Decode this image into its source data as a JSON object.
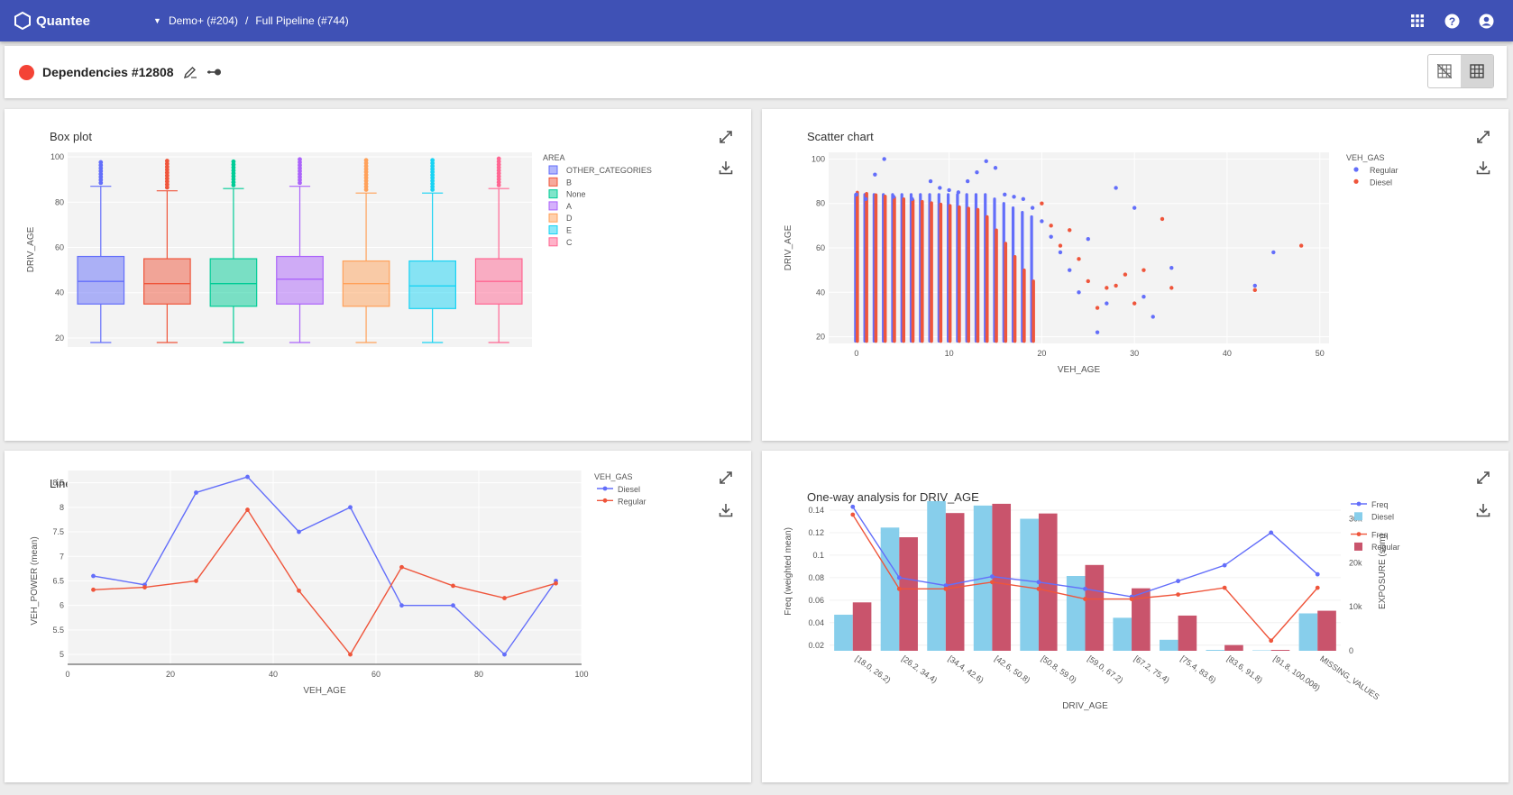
{
  "app": {
    "name": "Quantee",
    "breadcrumb": [
      "Demo+ (#204)",
      "Full Pipeline (#744)"
    ]
  },
  "page": {
    "title": "Dependencies #12808",
    "status_color": "#f44336"
  },
  "topbar_icons": [
    "apps-grid-icon",
    "help-icon",
    "account-icon"
  ],
  "view_toggle": [
    "grid-off-icon",
    "grid-icon"
  ],
  "colors": {
    "primary": "#3f51b5",
    "plot_bg": "#f3f3f3"
  },
  "panels": {
    "box": {
      "title": "Box plot"
    },
    "scatter": {
      "title": "Scatter chart"
    },
    "line": {
      "title": "Line chart"
    },
    "oneway": {
      "title": "One-way analysis for DRIV_AGE"
    }
  },
  "chart_data": [
    {
      "type": "box",
      "title": "Box plot",
      "xlabel": "",
      "ylabel": "DRIV_AGE",
      "ylim": [
        16,
        102
      ],
      "yticks": [
        20,
        40,
        60,
        80,
        100
      ],
      "legend_title": "AREA",
      "legend_position": "right",
      "series": [
        {
          "name": "OTHER_CATEGORIES",
          "color": "#636efa",
          "min": 18,
          "q1": 35,
          "median": 45,
          "q3": 56,
          "max": 87,
          "outliers_to": 98
        },
        {
          "name": "B",
          "color": "#ef553b",
          "min": 18,
          "q1": 35,
          "median": 44,
          "q3": 55,
          "max": 85,
          "outliers_to": 99
        },
        {
          "name": "None",
          "color": "#00cc96",
          "min": 18,
          "q1": 34,
          "median": 44,
          "q3": 55,
          "max": 86,
          "outliers_to": 99
        },
        {
          "name": "A",
          "color": "#ab63fa",
          "min": 18,
          "q1": 35,
          "median": 46,
          "q3": 56,
          "max": 87,
          "outliers_to": 99
        },
        {
          "name": "D",
          "color": "#ffa15a",
          "min": 18,
          "q1": 34,
          "median": 44,
          "q3": 54,
          "max": 84,
          "outliers_to": 99
        },
        {
          "name": "E",
          "color": "#19d3f3",
          "min": 18,
          "q1": 33,
          "median": 43,
          "q3": 54,
          "max": 84,
          "outliers_to": 99
        },
        {
          "name": "C",
          "color": "#ff6692",
          "min": 18,
          "q1": 35,
          "median": 45,
          "q3": 55,
          "max": 86,
          "outliers_to": 100
        }
      ]
    },
    {
      "type": "scatter",
      "title": "Scatter chart",
      "xlabel": "VEH_AGE",
      "ylabel": "DRIV_AGE",
      "xlim": [
        -3,
        51
      ],
      "ylim": [
        17,
        103
      ],
      "xticks": [
        0,
        10,
        20,
        30,
        40,
        50
      ],
      "yticks": [
        20,
        40,
        60,
        80,
        100
      ],
      "legend_title": "VEH_GAS",
      "legend_position": "right",
      "series": [
        {
          "name": "Regular",
          "color": "#636efa",
          "points": [
            [
              0,
              84
            ],
            [
              1,
              82
            ],
            [
              2,
              93
            ],
            [
              3,
              100
            ],
            [
              4,
              83
            ],
            [
              6,
              82
            ],
            [
              8,
              90
            ],
            [
              9,
              87
            ],
            [
              10,
              86
            ],
            [
              11,
              85
            ],
            [
              12,
              90
            ],
            [
              13,
              94
            ],
            [
              14,
              99
            ],
            [
              15,
              96
            ],
            [
              16,
              84
            ],
            [
              17,
              83
            ],
            [
              18,
              82
            ],
            [
              19,
              78
            ],
            [
              20,
              72
            ],
            [
              21,
              65
            ],
            [
              22,
              58
            ],
            [
              23,
              50
            ],
            [
              24,
              40
            ],
            [
              25,
              64
            ],
            [
              26,
              22
            ],
            [
              27,
              35
            ],
            [
              28,
              87
            ],
            [
              30,
              78
            ],
            [
              31,
              38
            ],
            [
              32,
              29
            ],
            [
              34,
              51
            ],
            [
              43,
              43
            ],
            [
              45,
              58
            ]
          ]
        },
        {
          "name": "Diesel",
          "color": "#ef553b",
          "points": [
            [
              20,
              80
            ],
            [
              21,
              70
            ],
            [
              22,
              61
            ],
            [
              23,
              68
            ],
            [
              24,
              55
            ],
            [
              25,
              45
            ],
            [
              26,
              33
            ],
            [
              27,
              42
            ],
            [
              28,
              43
            ],
            [
              29,
              48
            ],
            [
              30,
              35
            ],
            [
              31,
              50
            ],
            [
              33,
              73
            ],
            [
              34,
              42
            ],
            [
              43,
              41
            ],
            [
              48,
              61
            ]
          ]
        }
      ]
    },
    {
      "type": "line",
      "title": "Line chart",
      "xlabel": "VEH_AGE",
      "ylabel": "VEH_POWER (mean)",
      "xlim": [
        0,
        100
      ],
      "ylim": [
        4.8,
        8.75
      ],
      "xticks": [
        0,
        20,
        40,
        60,
        80,
        100
      ],
      "yticks": [
        5,
        5.5,
        6,
        6.5,
        7,
        7.5,
        8,
        8.5
      ],
      "legend_title": "VEH_GAS",
      "legend_position": "right",
      "x": [
        5,
        15,
        25,
        35,
        45,
        55,
        65,
        75,
        85,
        95
      ],
      "series": [
        {
          "name": "Diesel",
          "color": "#636efa",
          "values": [
            6.6,
            6.42,
            8.3,
            8.62,
            7.5,
            8.0,
            6.0,
            6.0,
            5.0,
            6.5
          ]
        },
        {
          "name": "Regular",
          "color": "#ef553b",
          "values": [
            6.32,
            6.37,
            6.5,
            7.95,
            6.3,
            5.0,
            6.78,
            6.4,
            6.15,
            6.45
          ]
        }
      ]
    },
    {
      "type": "bar",
      "title": "One-way analysis for DRIV_AGE",
      "xlabel": "DRIV_AGE",
      "ylabel": "Freq (weighted mean)",
      "y2label": "EXPOSURE (sum)",
      "ylim": [
        0.015,
        0.148
      ],
      "yticks": [
        0.02,
        0.04,
        0.06,
        0.08,
        0.1,
        0.12,
        0.14
      ],
      "y2lim": [
        0,
        34000
      ],
      "y2ticks": [
        0,
        10000,
        20000,
        30000
      ],
      "y2ticklabels": [
        "0",
        "10k",
        "20k",
        "30k"
      ],
      "legend_position": "right",
      "categories": [
        "[18.0, 26.2)",
        "[26.2, 34.4)",
        "[34.4, 42.6)",
        "[42.6, 50.8)",
        "[50.8, 59.0)",
        "[59.0, 67.2)",
        "[67.2, 75.4)",
        "[75.4, 83.6)",
        "[83.6, 91.8)",
        "[91.8, 100.008)",
        "MISSING_VALUES"
      ],
      "series": [
        {
          "name": "Freq",
          "group": "Diesel",
          "kind": "line",
          "color": "#636efa",
          "values": [
            0.143,
            0.08,
            0.073,
            0.081,
            0.076,
            0.07,
            0.063,
            0.077,
            0.091,
            0.12,
            0.083
          ]
        },
        {
          "name": "Diesel",
          "kind": "bar",
          "color": "#87ceeb",
          "values": [
            8200,
            28000,
            34000,
            33000,
            30000,
            17000,
            7500,
            2500,
            200,
            100,
            8500
          ]
        },
        {
          "name": "Freq",
          "group": "Regular",
          "kind": "line",
          "color": "#ef553b",
          "values": [
            0.136,
            0.07,
            0.07,
            0.076,
            0.07,
            0.061,
            0.061,
            0.065,
            0.071,
            0.024,
            0.071
          ]
        },
        {
          "name": "Regular",
          "kind": "bar",
          "color": "#c9546c",
          "values": [
            11000,
            25800,
            31300,
            33400,
            31200,
            19500,
            14200,
            8000,
            1300,
            200,
            9100
          ]
        }
      ]
    }
  ]
}
